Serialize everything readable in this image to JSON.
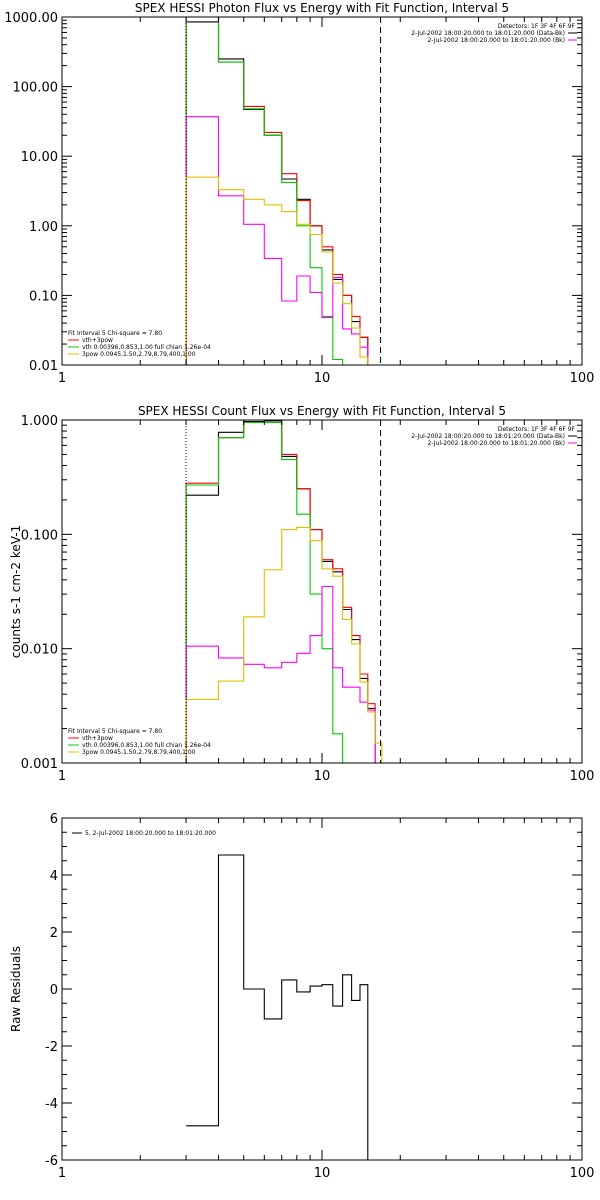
{
  "chart_data": [
    {
      "type": "line",
      "title": "SPEX HESSI Photon Flux vs Energy with Fit Function, Interval 5",
      "xlabel": "",
      "ylabel": "",
      "xscale": "log",
      "yscale": "log",
      "xlim": [
        1,
        100
      ],
      "ylim": [
        0.01,
        1000
      ],
      "x_tick_labels": [
        "1",
        "10",
        "100"
      ],
      "x_tick_values": [
        1,
        10,
        100
      ],
      "y_tick_labels": [
        "0.01",
        "0.10",
        "1.00",
        "10.00",
        "100.00",
        "1000.00"
      ],
      "y_tick_values": [
        0.01,
        0.1,
        1,
        10,
        100,
        1000
      ],
      "vlines": [
        {
          "x": 3.0,
          "style": "dotted"
        },
        {
          "x": 16.8,
          "style": "dashed"
        }
      ],
      "legend_top_right": [
        "Detectors: 1F 3F 4F 6F 9F",
        "2-Jul-2002 18:00:20.000 to 18:01:20.000 (Data-Bk)",
        "2-Jul-2002 18:00:20.000 to 18:01:20.000 (Bk)"
      ],
      "legend_bottom_left": [
        "Fit Interval 5   Chi-square = 7.80",
        "vth+3pow",
        "vth 0.00396,0.853,1.00  full chian 1.26e-04",
        "3pow 0.0945,1.50,2.79,8.79,400,1.00"
      ],
      "x_edges": [
        3.0,
        4.0,
        5.0,
        6.0,
        7.0,
        8.0,
        9.0,
        10.0,
        11.0,
        12.0,
        13.0,
        14.0,
        15.0,
        16.0,
        17.0,
        18.0,
        19.0
      ],
      "series": [
        {
          "color": "#000000",
          "values": [
            850,
            250,
            47,
            20,
            4.7,
            2.4,
            1.0,
            0.45,
            0.17,
            0.1,
            0.042,
            0.025,
            null,
            null,
            null,
            null
          ]
        },
        {
          "color": "#ff0000",
          "values": [
            1000,
            225,
            52,
            22,
            5.6,
            2.3,
            1.0,
            0.5,
            0.2,
            0.1,
            0.05,
            0.025,
            null,
            null,
            null,
            null
          ]
        },
        {
          "color": "#00cc00",
          "values": [
            1000,
            225,
            48,
            20,
            4.2,
            1.0,
            0.25,
            0.05,
            0.012,
            0.005,
            null,
            null,
            null,
            null,
            null,
            null
          ]
        },
        {
          "color": "#ff00ff",
          "values": [
            37,
            2.7,
            1.05,
            0.34,
            0.083,
            0.19,
            0.11,
            0.048,
            0.18,
            0.033,
            0.028,
            0.018,
            null,
            null,
            null,
            null
          ]
        },
        {
          "color": "#e0c000",
          "values": [
            5.0,
            3.3,
            2.4,
            2.0,
            1.6,
            1.05,
            0.75,
            0.42,
            0.15,
            0.076,
            0.034,
            0.013,
            0.01,
            null,
            null,
            null
          ]
        }
      ]
    },
    {
      "type": "line",
      "title": "SPEX HESSI Count Flux vs Energy with Fit Function, Interval 5",
      "xlabel": "",
      "ylabel": "counts s-1 cm-2 keV-1",
      "xscale": "log",
      "yscale": "log",
      "xlim": [
        1,
        100
      ],
      "ylim": [
        0.001,
        1.0
      ],
      "x_tick_labels": [
        "1",
        "10",
        "100"
      ],
      "x_tick_values": [
        1,
        10,
        100
      ],
      "y_tick_labels": [
        "0.001",
        "0.010",
        "0.100",
        "1.000"
      ],
      "y_tick_values": [
        0.001,
        0.01,
        0.1,
        1.0
      ],
      "vlines": [
        {
          "x": 3.0,
          "style": "dotted"
        },
        {
          "x": 16.8,
          "style": "dashed"
        }
      ],
      "legend_top_right": [
        "Detectors: 1F 3F 4F 6F 9F",
        "2-Jul-2002 18:00:20.000 to 18:01:20.000 (Data-Bk)",
        "2-Jul-2002 18:00:20.000 to 18:01:20.000 (Bk)"
      ],
      "legend_bottom_left": [
        "Fit Interval 5   Chi-square = 7.80",
        "vth+3pow",
        "vth 0.00396,0.853,1.00  full chian 1.26e-04",
        "3pow 0.0945,1.50,2.79,8.79,400,1.00"
      ],
      "x_edges": [
        3.0,
        4.0,
        5.0,
        6.0,
        7.0,
        8.0,
        9.0,
        10.0,
        11.0,
        12.0,
        13.0,
        14.0,
        15.0,
        16.0,
        17.0,
        18.0
      ],
      "series": [
        {
          "color": "#000000",
          "values": [
            0.22,
            0.78,
            0.97,
            0.98,
            0.48,
            0.25,
            0.11,
            0.058,
            0.047,
            0.022,
            0.012,
            0.0055,
            0.003,
            null,
            null
          ]
        },
        {
          "color": "#ff0000",
          "values": [
            0.28,
            0.7,
            1.0,
            1.0,
            0.5,
            0.25,
            0.11,
            0.06,
            0.05,
            0.023,
            0.013,
            0.006,
            0.0033,
            null,
            null
          ]
        },
        {
          "color": "#00cc00",
          "values": [
            0.27,
            0.7,
            0.95,
            0.95,
            0.45,
            0.15,
            0.03,
            0.01,
            0.0018,
            null,
            null,
            null,
            null,
            null,
            null
          ]
        },
        {
          "color": "#ff00ff",
          "values": [
            0.0105,
            0.0083,
            0.0073,
            0.0068,
            0.0076,
            0.0091,
            0.013,
            0.035,
            0.0068,
            0.0046,
            0.0046,
            0.0034,
            0.0029,
            null,
            null
          ]
        },
        {
          "color": "#e0c000",
          "values": [
            0.0036,
            0.0052,
            0.019,
            0.049,
            0.11,
            0.115,
            0.088,
            0.05,
            0.043,
            0.018,
            0.011,
            0.0051,
            0.0028,
            0.0015,
            null
          ]
        }
      ]
    },
    {
      "type": "line",
      "title": "",
      "xlabel": "",
      "ylabel": "Raw Residuals",
      "xscale": "log",
      "yscale": "linear",
      "xlim": [
        1,
        100
      ],
      "ylim": [
        -6,
        6
      ],
      "x_tick_labels": [
        "1",
        "10",
        "100"
      ],
      "x_tick_values": [
        1,
        10,
        100
      ],
      "y_tick_labels": [
        "-6",
        "-4",
        "-2",
        "0",
        "2",
        "4",
        "6"
      ],
      "y_tick_values": [
        -6,
        -4,
        -2,
        0,
        2,
        4,
        6
      ],
      "legend": [
        "5, 2-Jul-2002 18:00:20.000 to 18:01:20.000"
      ],
      "x_edges": [
        3.0,
        4.0,
        5.0,
        6.0,
        7.0,
        8.0,
        9.0,
        10.0,
        11.0,
        12.0,
        13.0,
        14.0,
        15.0,
        16.0,
        16.8
      ],
      "series": [
        {
          "color": "#000000",
          "values": [
            -4.8,
            4.7,
            0.0,
            -1.05,
            0.32,
            -0.1,
            0.1,
            0.15,
            -0.6,
            0.5,
            -0.4,
            0.15,
            null,
            null
          ]
        }
      ]
    }
  ]
}
